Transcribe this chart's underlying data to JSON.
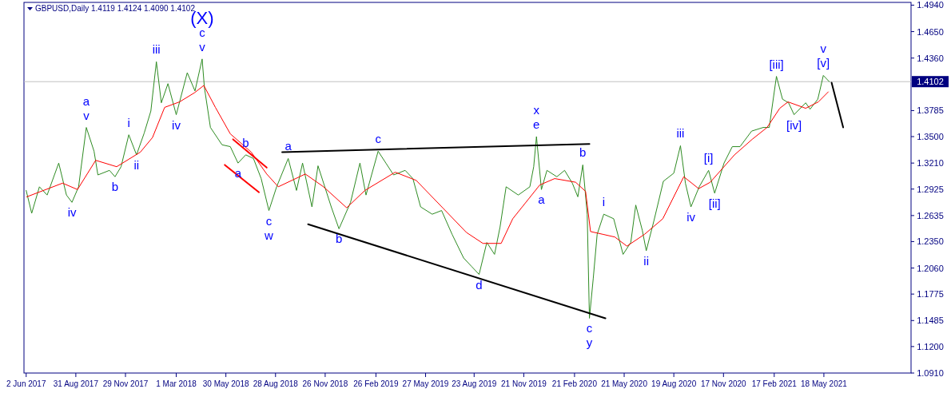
{
  "chart_data": {
    "type": "line",
    "title": "GBPUSD,Daily  1.4119 1.4124 1.4090 1.4102",
    "xlim": [
      "2017-05-29",
      "2021-10-23"
    ],
    "xticks": [
      {
        "value": "2017-06-02",
        "label": "2 Jun 2017"
      },
      {
        "value": "2017-08-31",
        "label": "31 Aug 2017"
      },
      {
        "value": "2017-11-29",
        "label": "29 Nov 2017"
      },
      {
        "value": "2018-03-01",
        "label": "1 Mar 2018"
      },
      {
        "value": "2018-05-30",
        "label": "30 May 2018"
      },
      {
        "value": "2018-08-28",
        "label": "28 Aug 2018"
      },
      {
        "value": "2018-11-26",
        "label": "26 Nov 2018"
      },
      {
        "value": "2019-02-26",
        "label": "26 Feb 2019"
      },
      {
        "value": "2019-05-27",
        "label": "27 May 2019"
      },
      {
        "value": "2019-08-23",
        "label": "23 Aug 2019"
      },
      {
        "value": "2019-11-21",
        "label": "21 Nov 2019"
      },
      {
        "value": "2020-02-21",
        "label": "21 Feb 2020"
      },
      {
        "value": "2020-05-21",
        "label": "21 May 2020"
      },
      {
        "value": "2020-08-19",
        "label": "19 Aug 2020"
      },
      {
        "value": "2020-11-17",
        "label": "17 Nov 2020"
      },
      {
        "value": "2021-02-17",
        "label": "17 Feb 2021"
      },
      {
        "value": "2021-05-18",
        "label": "18 May 2021"
      }
    ],
    "ylim": [
      1.091,
      1.497
    ],
    "yticks": [
      {
        "value": 1.494,
        "label": "1.4940"
      },
      {
        "value": 1.465,
        "label": "1.4650"
      },
      {
        "value": 1.436,
        "label": "1.4360"
      },
      1.3785,
      {
        "value": 1.35,
        "label": "1.3500"
      },
      {
        "value": 1.321,
        "label": "1.3210"
      },
      1.2925,
      1.2635,
      {
        "value": 1.235,
        "label": "1.2350"
      },
      {
        "value": 1.206,
        "label": "1.2060"
      },
      1.1775,
      1.1485,
      {
        "value": 1.12,
        "label": "1.1200"
      },
      {
        "value": 1.091,
        "label": "1.0910"
      }
    ],
    "ref_lines": [
      {
        "axis": "y",
        "value": 1.4102,
        "label": "1.4102",
        "color": "#c0c0c0"
      }
    ],
    "series": [
      {
        "color": "#2e8b22",
        "x": [
          "2017-06-02",
          "2017-06-12",
          "2017-06-26",
          "2017-07-10",
          "2017-07-31",
          "2017-08-14",
          "2017-08-24",
          "2017-09-05",
          "2017-09-19",
          "2017-10-03",
          "2017-10-10",
          "2017-10-31",
          "2017-11-10",
          "2017-11-21",
          "2017-12-05",
          "2017-12-19",
          "2018-01-02",
          "2018-01-14",
          "2018-01-24",
          "2018-02-02",
          "2018-02-14",
          "2018-03-01",
          "2018-03-21",
          "2018-04-04",
          "2018-04-17",
          "2018-04-21",
          "2018-05-02",
          "2018-05-23",
          "2018-06-07",
          "2018-06-21",
          "2018-07-05",
          "2018-07-19",
          "2018-08-02",
          "2018-08-16",
          "2018-08-30",
          "2018-09-20",
          "2018-10-05",
          "2018-10-16",
          "2018-11-02",
          "2018-11-13",
          "2018-12-07",
          "2018-12-21",
          "2019-01-11",
          "2019-01-28",
          "2019-02-08",
          "2019-03-02",
          "2019-03-16",
          "2019-03-30",
          "2019-04-20",
          "2019-05-04",
          "2019-05-18",
          "2019-06-08",
          "2019-06-25",
          "2019-07-14",
          "2019-08-04",
          "2019-08-18",
          "2019-09-01",
          "2019-09-15",
          "2019-09-29",
          "2019-10-09",
          "2019-10-20",
          "2019-11-11",
          "2019-12-02",
          "2019-12-09",
          "2019-12-14",
          "2019-12-23",
          "2020-01-02",
          "2020-01-20",
          "2020-02-03",
          "2020-02-17",
          "2020-02-27",
          "2020-03-07",
          "2020-03-15",
          "2020-03-19",
          "2020-03-26",
          "2020-04-02",
          "2020-04-14",
          "2020-05-02",
          "2020-05-19",
          "2020-06-02",
          "2020-06-11",
          "2020-06-23",
          "2020-06-30",
          "2020-07-14",
          "2020-07-31",
          "2020-08-19",
          "2020-08-31",
          "2020-09-09",
          "2020-09-19",
          "2020-10-04",
          "2020-10-21",
          "2020-11-01",
          "2020-11-18",
          "2020-12-03",
          "2020-12-17",
          "2021-01-07",
          "2021-01-28",
          "2021-02-08",
          "2021-02-21",
          "2021-03-04",
          "2021-03-15",
          "2021-03-25",
          "2021-04-15",
          "2021-04-23",
          "2021-05-07",
          "2021-05-17",
          "2021-05-28"
        ],
        "values": [
          1.291,
          1.266,
          1.295,
          1.286,
          1.321,
          1.286,
          1.278,
          1.295,
          1.36,
          1.334,
          1.308,
          1.313,
          1.306,
          1.317,
          1.352,
          1.33,
          1.354,
          1.378,
          1.432,
          1.387,
          1.408,
          1.374,
          1.42,
          1.4,
          1.435,
          1.404,
          1.36,
          1.341,
          1.339,
          1.321,
          1.33,
          1.326,
          1.304,
          1.269,
          1.295,
          1.326,
          1.291,
          1.321,
          1.273,
          1.318,
          1.273,
          1.249,
          1.278,
          1.321,
          1.286,
          1.334,
          1.321,
          1.308,
          1.313,
          1.304,
          1.273,
          1.265,
          1.269,
          1.243,
          1.217,
          1.208,
          1.199,
          1.234,
          1.221,
          1.251,
          1.295,
          1.286,
          1.295,
          1.317,
          1.35,
          1.292,
          1.313,
          1.306,
          1.313,
          1.299,
          1.284,
          1.319,
          1.265,
          1.151,
          1.195,
          1.243,
          1.265,
          1.26,
          1.221,
          1.234,
          1.275,
          1.247,
          1.225,
          1.258,
          1.301,
          1.31,
          1.34,
          1.299,
          1.273,
          1.295,
          1.313,
          1.288,
          1.321,
          1.339,
          1.339,
          1.356,
          1.36,
          1.36,
          1.416,
          1.391,
          1.387,
          1.374,
          1.387,
          1.38,
          1.391,
          1.417,
          1.41
        ]
      },
      {
        "color": "#ff0000",
        "x": [
          "2017-06-03",
          "2017-08-07",
          "2017-09-03",
          "2017-10-06",
          "2017-11-13",
          "2017-12-26",
          "2018-01-17",
          "2018-02-08",
          "2018-03-07",
          "2018-04-03",
          "2018-04-20",
          "2018-05-11",
          "2018-06-07",
          "2018-07-15",
          "2018-08-12",
          "2018-09-02",
          "2018-10-21",
          "2018-11-23",
          "2019-01-04",
          "2019-02-06",
          "2019-04-02",
          "2019-05-10",
          "2019-06-27",
          "2019-08-09",
          "2019-09-08",
          "2019-10-11",
          "2019-11-01",
          "2019-12-20",
          "2020-01-16",
          "2020-02-23",
          "2020-03-12",
          "2020-03-21",
          "2020-04-12",
          "2020-05-04",
          "2020-05-26",
          "2020-06-27",
          "2020-07-30",
          "2020-09-06",
          "2020-10-03",
          "2020-10-24",
          "2020-12-07",
          "2021-01-08",
          "2021-02-04",
          "2021-02-27",
          "2021-03-14",
          "2021-04-15",
          "2021-05-08",
          "2021-05-26"
        ],
        "values": [
          1.284,
          1.299,
          1.292,
          1.324,
          1.317,
          1.333,
          1.349,
          1.382,
          1.388,
          1.398,
          1.406,
          1.382,
          1.353,
          1.333,
          1.309,
          1.295,
          1.309,
          1.295,
          1.272,
          1.291,
          1.311,
          1.302,
          1.272,
          1.245,
          1.233,
          1.233,
          1.26,
          1.297,
          1.304,
          1.3,
          1.29,
          1.246,
          1.243,
          1.24,
          1.23,
          1.243,
          1.26,
          1.306,
          1.293,
          1.3,
          1.33,
          1.347,
          1.36,
          1.381,
          1.388,
          1.381,
          1.388,
          1.399
        ]
      },
      {
        "color": "#000000",
        "x": [
          "2018-09-09",
          "2020-03-19"
        ],
        "values": [
          1.333,
          1.342
        ]
      },
      {
        "color": "#000000",
        "x": [
          "2018-10-26",
          "2020-04-17"
        ],
        "values": [
          1.254,
          1.151
        ]
      },
      {
        "color": "#ff0000",
        "x": [
          "2018-06-12",
          "2018-08-12"
        ],
        "values": [
          1.347,
          1.316
        ]
      },
      {
        "color": "#ff0000",
        "x": [
          "2018-05-28",
          "2018-07-29"
        ],
        "values": [
          1.319,
          1.289
        ]
      },
      {
        "color": "#000000",
        "x": [
          "2021-06-01",
          "2021-06-22"
        ],
        "values": [
          1.409,
          1.36
        ]
      }
    ],
    "annotations": [
      {
        "text": "(X)",
        "x": "2018-04-17",
        "y": 1.435
      },
      {
        "text": "c",
        "x": "2018-04-17",
        "y": 1.435
      },
      {
        "text": "v",
        "x": "2018-04-17",
        "y": 1.435
      },
      {
        "text": "iii",
        "x": "2018-01-24",
        "y": 1.432
      },
      {
        "text": "a",
        "x": "2017-09-19",
        "y": 1.36
      },
      {
        "text": "v",
        "x": "2017-09-19",
        "y": 1.36
      },
      {
        "text": "i",
        "x": "2017-12-05",
        "y": 1.352
      },
      {
        "text": "iv",
        "x": "2018-03-01",
        "y": 1.374
      },
      {
        "text": "ii",
        "x": "2017-12-19",
        "y": 1.33
      },
      {
        "text": "b",
        "x": "2017-11-10",
        "y": 1.306
      },
      {
        "text": "iv",
        "x": "2017-08-24",
        "y": 1.278
      },
      {
        "text": "b",
        "x": "2018-07-05",
        "y": 1.33
      },
      {
        "text": "a",
        "x": "2018-06-21",
        "y": 1.321
      },
      {
        "text": "c",
        "x": "2018-08-16",
        "y": 1.269
      },
      {
        "text": "w",
        "x": "2018-08-16",
        "y": 1.269
      },
      {
        "text": "a",
        "x": "2018-09-20",
        "y": 1.326
      },
      {
        "text": "c",
        "x": "2019-03-02",
        "y": 1.334
      },
      {
        "text": "b",
        "x": "2018-12-21",
        "y": 1.249
      },
      {
        "text": "d",
        "x": "2019-09-01",
        "y": 1.199
      },
      {
        "text": "x",
        "x": "2019-12-14",
        "y": 1.35
      },
      {
        "text": "e",
        "x": "2019-12-14",
        "y": 1.35
      },
      {
        "text": "a",
        "x": "2019-12-23",
        "y": 1.292
      },
      {
        "text": "b",
        "x": "2020-03-07",
        "y": 1.319
      },
      {
        "text": "i",
        "x": "2020-04-14",
        "y": 1.265
      },
      {
        "text": "ii",
        "x": "2020-06-30",
        "y": 1.225
      },
      {
        "text": "c",
        "x": "2020-03-19",
        "y": 1.151
      },
      {
        "text": "y",
        "x": "2020-03-19",
        "y": 1.151
      },
      {
        "text": "iii",
        "x": "2020-08-31",
        "y": 1.34
      },
      {
        "text": "iv",
        "x": "2020-09-19",
        "y": 1.273
      },
      {
        "text": "[i]",
        "x": "2020-10-21",
        "y": 1.313
      },
      {
        "text": "[ii]",
        "x": "2020-11-01",
        "y": 1.288
      },
      {
        "text": "[iii]",
        "x": "2021-02-21",
        "y": 1.416
      },
      {
        "text": "[iv]",
        "x": "2021-03-25",
        "y": 1.374
      },
      {
        "text": "v",
        "x": "2021-05-17",
        "y": 1.417
      },
      {
        "text": "[v]",
        "x": "2021-05-17",
        "y": 1.417
      }
    ]
  }
}
